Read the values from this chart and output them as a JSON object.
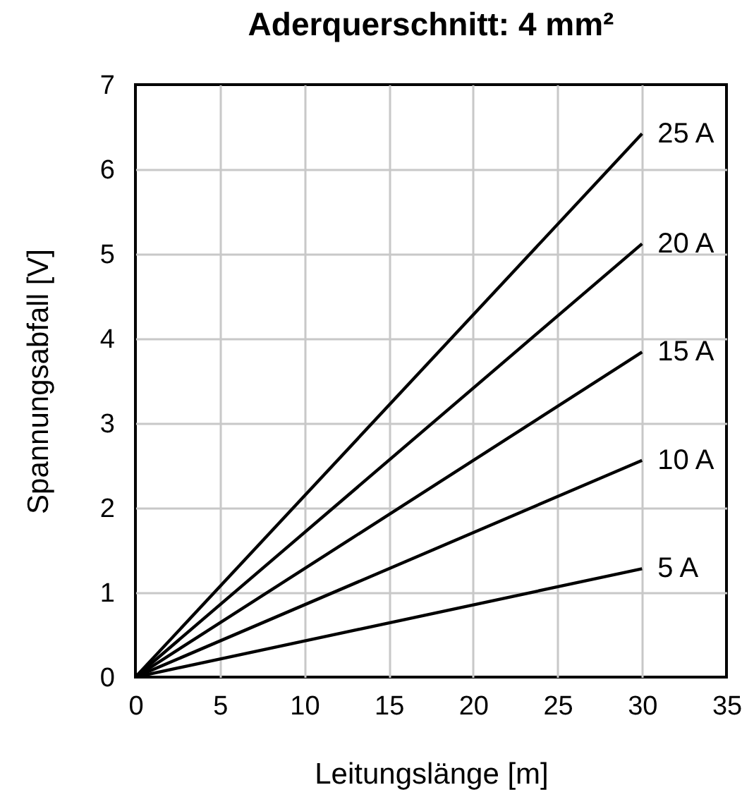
{
  "chart_data": {
    "type": "line",
    "title": "Aderquerschnitt: 4 mm²",
    "xlabel": "Leitungslänge [m]",
    "ylabel": "Spannungsabfall [V]",
    "xlim": [
      0,
      35
    ],
    "ylim": [
      0,
      7
    ],
    "xticks": [
      0,
      5,
      10,
      15,
      20,
      25,
      30,
      35
    ],
    "yticks": [
      0,
      1,
      2,
      3,
      4,
      5,
      6,
      7
    ],
    "grid": true,
    "x": [
      0,
      30
    ],
    "series": [
      {
        "name": "5 A",
        "color": "#000000",
        "values": [
          0,
          1.28
        ]
      },
      {
        "name": "10 A",
        "color": "#000000",
        "values": [
          0,
          2.56
        ]
      },
      {
        "name": "15 A",
        "color": "#000000",
        "values": [
          0,
          3.84
        ]
      },
      {
        "name": "20 A",
        "color": "#000000",
        "values": [
          0,
          5.12
        ]
      },
      {
        "name": "25 A",
        "color": "#000000",
        "values": [
          0,
          6.42
        ]
      }
    ]
  }
}
